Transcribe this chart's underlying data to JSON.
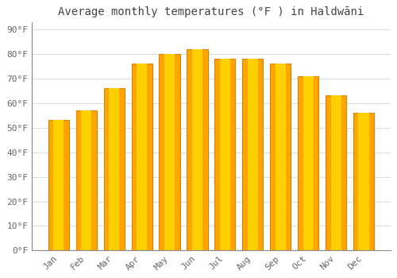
{
  "title": "Average monthly temperatures (°F ) in Haldwāni",
  "months": [
    "Jan",
    "Feb",
    "Mar",
    "Apr",
    "May",
    "Jun",
    "Jul",
    "Aug",
    "Sep",
    "Oct",
    "Nov",
    "Dec"
  ],
  "values": [
    53,
    57,
    66,
    76,
    80,
    82,
    78,
    78,
    76,
    71,
    63,
    56
  ],
  "bar_color_face": "#FFA500",
  "bar_color_light": "#FFD000",
  "bar_color_edge": "#E08000",
  "background_color": "#FFFFFF",
  "plot_bg_color": "#FFFFFF",
  "grid_color": "#DDDDDD",
  "yticks": [
    0,
    10,
    20,
    30,
    40,
    50,
    60,
    70,
    80,
    90
  ],
  "ylim": [
    0,
    93
  ],
  "title_fontsize": 10,
  "tick_fontsize": 8,
  "tick_color": "#666666",
  "title_color": "#444444",
  "spine_color": "#888888"
}
